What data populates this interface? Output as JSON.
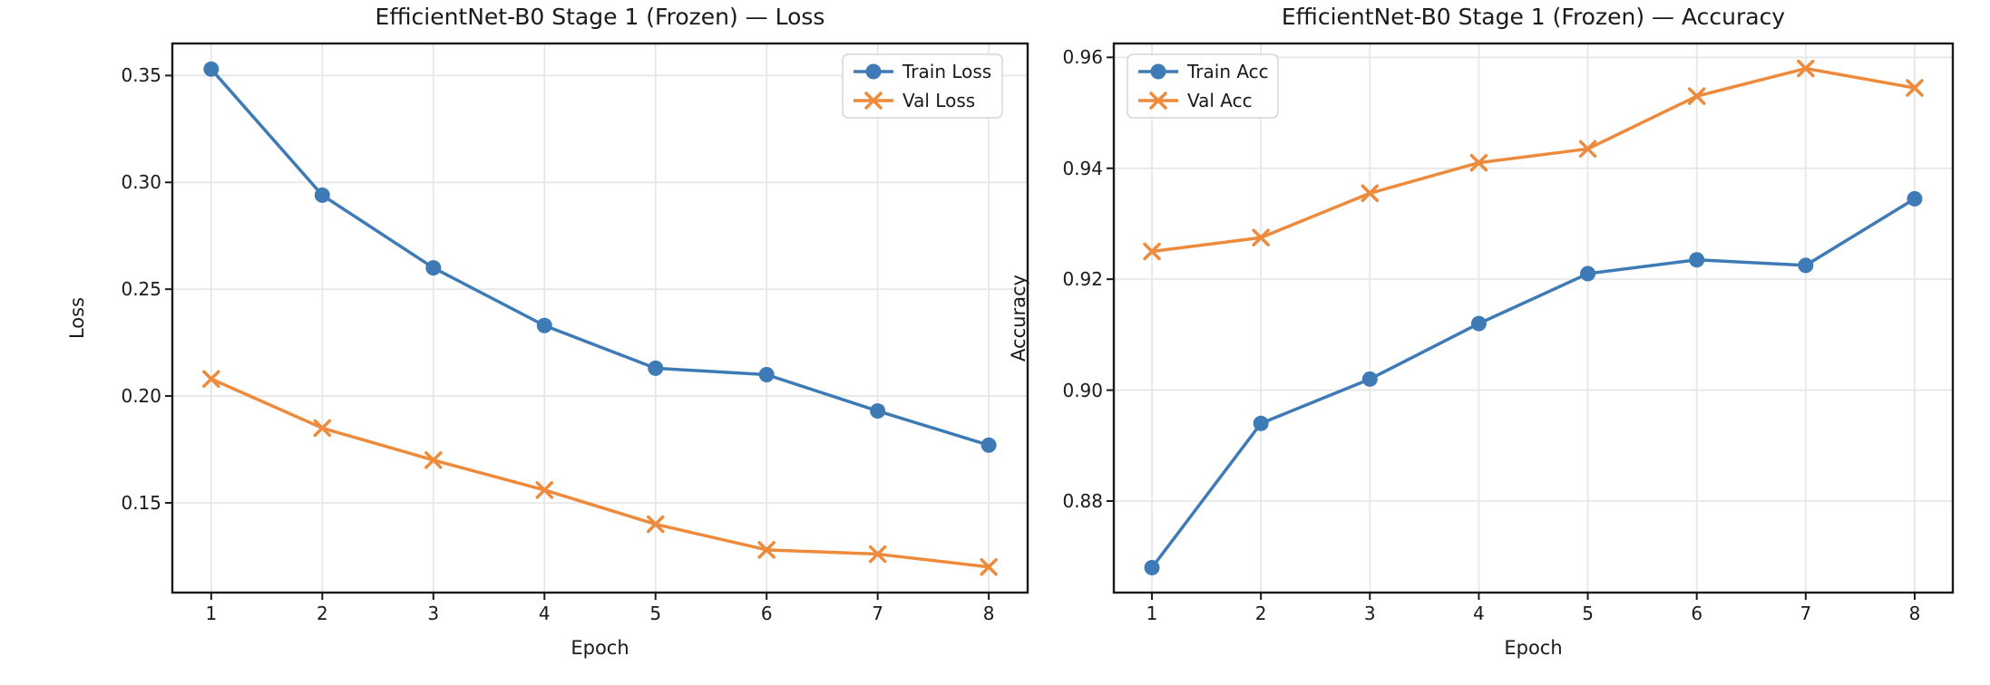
{
  "figure": {
    "background": "#ffffff",
    "text_color": "#1a1a1a",
    "grid_color": "#e7e7e7",
    "spine_color": "#1a1a1a",
    "legend_border_color": "#d5d5d5",
    "legend_background": "#ffffff"
  },
  "chart_data": [
    {
      "type": "line",
      "title": "EfficientNet-B0 Stage 1 (Frozen) — Loss",
      "xlabel": "Epoch",
      "ylabel": "Loss",
      "x": [
        1,
        2,
        3,
        4,
        5,
        6,
        7,
        8
      ],
      "xtick_labels": [
        "1",
        "2",
        "3",
        "4",
        "5",
        "6",
        "7",
        "8"
      ],
      "yticks": [
        0.15,
        0.2,
        0.25,
        0.3,
        0.35
      ],
      "ytick_labels": [
        "0.15",
        "0.20",
        "0.25",
        "0.30",
        "0.35"
      ],
      "xlim": [
        0.65,
        8.35
      ],
      "ylim": [
        0.108,
        0.365
      ],
      "grid": true,
      "legend_loc": "upper right",
      "series": [
        {
          "name": "Train Loss",
          "marker": "circle",
          "color": "#3e7bb6",
          "values": [
            0.353,
            0.294,
            0.26,
            0.233,
            0.213,
            0.21,
            0.193,
            0.177
          ]
        },
        {
          "name": "Val Loss",
          "marker": "x",
          "color": "#ee8a3c",
          "values": [
            0.208,
            0.185,
            0.17,
            0.156,
            0.14,
            0.128,
            0.126,
            0.12
          ]
        }
      ]
    },
    {
      "type": "line",
      "title": "EfficientNet-B0 Stage 1 (Frozen) — Accuracy",
      "xlabel": "Epoch",
      "ylabel": "Accuracy",
      "x": [
        1,
        2,
        3,
        4,
        5,
        6,
        7,
        8
      ],
      "xtick_labels": [
        "1",
        "2",
        "3",
        "4",
        "5",
        "6",
        "7",
        "8"
      ],
      "yticks": [
        0.88,
        0.9,
        0.92,
        0.94,
        0.96
      ],
      "ytick_labels": [
        "0.88",
        "0.90",
        "0.92",
        "0.94",
        "0.96"
      ],
      "xlim": [
        0.65,
        8.35
      ],
      "ylim": [
        0.8635,
        0.9625
      ],
      "grid": true,
      "legend_loc": "upper left",
      "series": [
        {
          "name": "Train Acc",
          "marker": "circle",
          "color": "#3e7bb6",
          "values": [
            0.868,
            0.894,
            0.902,
            0.912,
            0.921,
            0.9235,
            0.9225,
            0.9345
          ]
        },
        {
          "name": "Val Acc",
          "marker": "x",
          "color": "#ee8a3c",
          "values": [
            0.925,
            0.9275,
            0.9355,
            0.941,
            0.9435,
            0.953,
            0.958,
            0.9545
          ]
        }
      ]
    }
  ]
}
